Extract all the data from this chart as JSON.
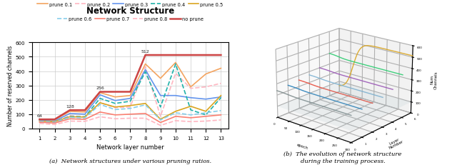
{
  "title": "Network Structure",
  "xlabel": "Network layer number",
  "ylabel": "Number of reserved channels",
  "x": [
    1,
    2,
    3,
    4,
    5,
    6,
    7,
    8,
    9,
    10,
    11,
    12,
    13
  ],
  "series": [
    {
      "label": "prune 0.1",
      "color": "#F4A460",
      "linestyle": "solid",
      "linewidth": 1.2,
      "values": [
        64,
        60,
        120,
        115,
        250,
        220,
        230,
        450,
        350,
        460,
        290,
        380,
        420
      ]
    },
    {
      "label": "prune 0.2",
      "color": "#FFB6C1",
      "linestyle": "dashed",
      "linewidth": 1.2,
      "values": [
        55,
        45,
        90,
        80,
        180,
        145,
        150,
        430,
        85,
        385,
        280,
        290,
        315
      ]
    },
    {
      "label": "prune 0.3",
      "color": "#6495ED",
      "linestyle": "solid",
      "linewidth": 1.2,
      "values": [
        58,
        52,
        105,
        100,
        235,
        195,
        210,
        410,
        230,
        230,
        215,
        205,
        220
      ]
    },
    {
      "label": "prune 0.4",
      "color": "#20B2AA",
      "linestyle": "dashed",
      "linewidth": 1.2,
      "values": [
        50,
        45,
        85,
        82,
        210,
        175,
        190,
        395,
        150,
        450,
        130,
        95,
        215
      ]
    },
    {
      "label": "prune 0.5",
      "color": "#DAA520",
      "linestyle": "solid",
      "linewidth": 1.2,
      "values": [
        52,
        48,
        82,
        80,
        180,
        150,
        160,
        175,
        65,
        120,
        155,
        120,
        230
      ]
    },
    {
      "label": "prune 0.6",
      "color": "#87CEEB",
      "linestyle": "dashed",
      "linewidth": 1.2,
      "values": [
        50,
        44,
        78,
        74,
        168,
        132,
        140,
        165,
        60,
        110,
        95,
        110,
        125
      ]
    },
    {
      "label": "prune 0.7",
      "color": "#FA8072",
      "linestyle": "solid",
      "linewidth": 1.2,
      "values": [
        44,
        38,
        68,
        64,
        115,
        95,
        100,
        105,
        42,
        85,
        75,
        85,
        95
      ]
    },
    {
      "label": "prune 0.8",
      "color": "#FFB6C1",
      "linestyle": "dashed",
      "linewidth": 1.2,
      "values": [
        36,
        28,
        52,
        50,
        82,
        68,
        72,
        72,
        22,
        55,
        48,
        52,
        60
      ]
    },
    {
      "label": "no prune",
      "color": "#CC4444",
      "linestyle": "solid",
      "linewidth": 1.8,
      "values": [
        64,
        64,
        128,
        128,
        256,
        256,
        256,
        512,
        512,
        512,
        512,
        512,
        512
      ]
    }
  ],
  "annotation_layers": [
    1,
    2,
    3,
    4,
    5,
    6,
    7,
    8,
    9,
    10,
    11,
    12,
    13
  ],
  "annotation_values": [
    64,
    64,
    128,
    128,
    256,
    256,
    256,
    512,
    512,
    512,
    512,
    512,
    512
  ],
  "ylim": [
    0,
    600
  ],
  "yticks": [
    0,
    100,
    200,
    300,
    400,
    500,
    600
  ],
  "grid_color": "#cccccc",
  "background_color": "#ffffff",
  "caption_left": "(a)  Network structures under various pruning ratios.",
  "caption_right": "(b)  The evolution of network structure\nduring the training process.",
  "legend_rows": [
    [
      "prune 0.1",
      "prune 0.2",
      "prune 0.3",
      "prune 0.4",
      "prune 0.5"
    ],
    [
      "prune 0.6",
      "prune 0.7",
      "prune 0.8",
      "no prune"
    ]
  ]
}
